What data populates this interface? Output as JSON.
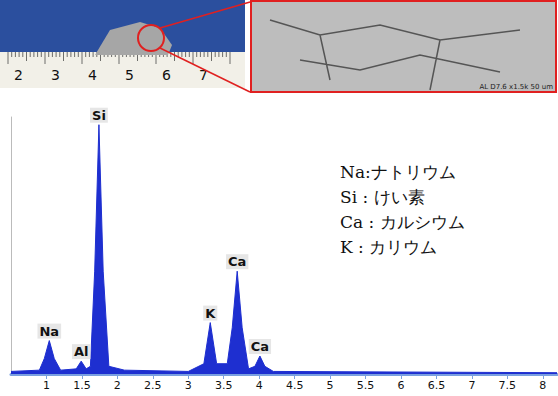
{
  "photo": {
    "ruler_labels": [
      "2",
      "3",
      "4",
      "5",
      "6",
      "7"
    ]
  },
  "sem_image": {
    "caption": "AL D7.6 x1.5k 50 um"
  },
  "element_key": [
    "Na:ナトリウム",
    "Si : けい素",
    "Ca : カルシウム",
    "K : カリウム"
  ],
  "chart_data": {
    "type": "area",
    "x": [
      0.5,
      0.9,
      0.97,
      1.04,
      1.11,
      1.2,
      1.42,
      1.49,
      1.56,
      1.62,
      1.68,
      1.74,
      1.8,
      1.88,
      2.1,
      3.0,
      3.22,
      3.31,
      3.4,
      3.55,
      3.62,
      3.69,
      3.76,
      3.85,
      3.94,
      4.01,
      4.08,
      4.2,
      8.2
    ],
    "values": [
      1,
      1.5,
      6,
      13,
      6,
      1.5,
      2,
      5,
      2,
      3,
      40,
      97,
      40,
      3,
      1.5,
      1,
      4,
      20,
      4,
      4,
      18,
      40,
      18,
      2,
      3,
      7,
      3,
      1,
      0.5
    ],
    "color": "#1e2fd0",
    "xlim": [
      0.5,
      8.2
    ],
    "xticks": [
      1,
      1.5,
      2,
      2.5,
      3,
      3.5,
      4,
      4.5,
      5,
      5.5,
      6,
      6.5,
      7,
      7.5,
      8
    ],
    "ylim": [
      0,
      100
    ],
    "tick_labels": "x",
    "grid": false,
    "annotations": [
      {
        "text": "Na",
        "x": 1.04,
        "y": 13
      },
      {
        "text": "Al",
        "x": 1.49,
        "y": 5
      },
      {
        "text": "Si",
        "x": 1.74,
        "y": 97
      },
      {
        "text": "K",
        "x": 3.31,
        "y": 20
      },
      {
        "text": "Ca",
        "x": 3.69,
        "y": 40
      },
      {
        "text": "Ca",
        "x": 4.01,
        "y": 7
      }
    ]
  }
}
